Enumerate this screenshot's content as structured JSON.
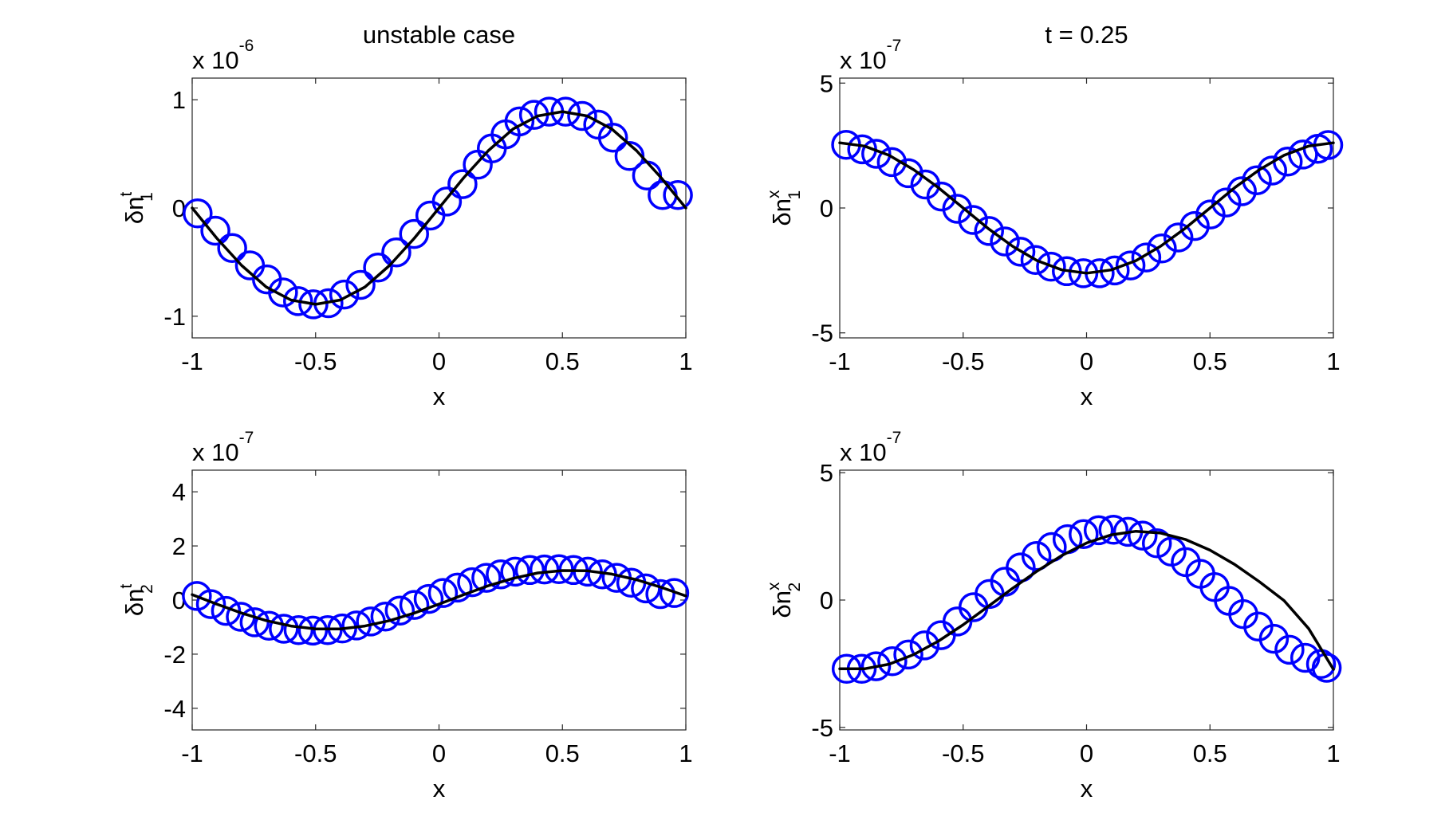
{
  "colors": {
    "marker": "#0000ff",
    "line": "#000000",
    "axis": "#262626",
    "background": "#ffffff"
  },
  "chart_data": [
    {
      "id": "top-left",
      "type": "line",
      "title": "unstable case",
      "xlabel": "x",
      "ylabel": {
        "base": "δn",
        "sup": "t",
        "sub": "1"
      },
      "exponent": {
        "base": "x 10",
        "power": "-6"
      },
      "xlim": [
        -1,
        1
      ],
      "ylim": [
        -1.2,
        1.2
      ],
      "xticks": [
        -1,
        -0.5,
        0,
        0.5,
        1
      ],
      "xtick_labels": [
        "-1",
        "-0.5",
        "0",
        "0.5",
        "1"
      ],
      "yticks": [
        -1,
        0,
        1
      ],
      "ytick_labels": [
        "-1",
        "0",
        "1"
      ],
      "grid": false,
      "series": [
        {
          "style": "circle-markers",
          "color": "#0000ff",
          "x": [
            -0.978,
            -0.906,
            -0.838,
            -0.766,
            -0.697,
            -0.632,
            -0.571,
            -0.509,
            -0.448,
            -0.384,
            -0.318,
            -0.247,
            -0.173,
            -0.101,
            -0.035,
            0.032,
            0.095,
            0.157,
            0.214,
            0.27,
            0.326,
            0.385,
            0.446,
            0.513,
            0.58,
            0.645,
            0.705,
            0.772,
            0.843,
            0.906,
            0.968
          ],
          "y": [
            -0.05,
            -0.21,
            -0.37,
            -0.53,
            -0.66,
            -0.78,
            -0.86,
            -0.89,
            -0.88,
            -0.8,
            -0.71,
            -0.55,
            -0.41,
            -0.24,
            -0.07,
            0.06,
            0.22,
            0.4,
            0.55,
            0.68,
            0.8,
            0.86,
            0.89,
            0.89,
            0.85,
            0.77,
            0.65,
            0.48,
            0.3,
            0.12,
            0.12
          ]
        },
        {
          "style": "solid-line",
          "color": "#000000",
          "x": [
            -1,
            -0.9,
            -0.8,
            -0.7,
            -0.6,
            -0.5,
            -0.4,
            -0.3,
            -0.2,
            -0.1,
            0,
            0.1,
            0.2,
            0.3,
            0.4,
            0.5,
            0.6,
            0.7,
            0.8,
            0.9,
            1
          ],
          "y": [
            0,
            -0.28,
            -0.53,
            -0.73,
            -0.85,
            -0.89,
            -0.85,
            -0.73,
            -0.53,
            -0.28,
            0,
            0.28,
            0.53,
            0.73,
            0.85,
            0.89,
            0.85,
            0.73,
            0.53,
            0.28,
            0
          ]
        }
      ]
    },
    {
      "id": "top-right",
      "type": "line",
      "title": "t = 0.25",
      "xlabel": "x",
      "ylabel": {
        "base": "δn",
        "sup": "x",
        "sub": "1"
      },
      "exponent": {
        "base": "x 10",
        "power": "-7"
      },
      "xlim": [
        -1,
        1
      ],
      "ylim": [
        -5.2,
        5.2
      ],
      "xticks": [
        -1,
        -0.5,
        0,
        0.5,
        1
      ],
      "xtick_labels": [
        "-1",
        "-0.5",
        "0",
        "0.5",
        "1"
      ],
      "yticks": [
        -5,
        0,
        5
      ],
      "ytick_labels": [
        "-5",
        "0",
        "5"
      ],
      "grid": false,
      "series": [
        {
          "style": "circle-markers",
          "color": "#0000ff",
          "x": [
            -0.974,
            -0.909,
            -0.852,
            -0.789,
            -0.722,
            -0.653,
            -0.588,
            -0.524,
            -0.46,
            -0.395,
            -0.331,
            -0.268,
            -0.207,
            -0.144,
            -0.08,
            -0.013,
            0.053,
            0.114,
            0.178,
            0.242,
            0.305,
            0.372,
            0.438,
            0.502,
            0.566,
            0.629,
            0.69,
            0.752,
            0.815,
            0.877,
            0.937,
            0.979
          ],
          "y": [
            2.53,
            2.35,
            2.17,
            1.84,
            1.39,
            0.94,
            0.46,
            -0.03,
            -0.48,
            -0.92,
            -1.34,
            -1.75,
            -2.08,
            -2.35,
            -2.53,
            -2.61,
            -2.61,
            -2.5,
            -2.3,
            -1.98,
            -1.62,
            -1.18,
            -0.72,
            -0.26,
            0.22,
            0.67,
            1.11,
            1.5,
            1.86,
            2.14,
            2.37,
            2.52
          ]
        },
        {
          "style": "solid-line",
          "color": "#000000",
          "x": [
            -1,
            -0.9,
            -0.8,
            -0.7,
            -0.6,
            -0.5,
            -0.4,
            -0.3,
            -0.2,
            -0.1,
            0,
            0.1,
            0.2,
            0.3,
            0.4,
            0.5,
            0.6,
            0.7,
            0.8,
            0.9,
            1
          ],
          "y": [
            2.61,
            2.48,
            2.11,
            1.53,
            0.81,
            0,
            -0.81,
            -1.53,
            -2.11,
            -2.48,
            -2.61,
            -2.48,
            -2.11,
            -1.53,
            -0.81,
            0,
            0.81,
            1.53,
            2.11,
            2.48,
            2.61
          ]
        }
      ]
    },
    {
      "id": "bottom-left",
      "type": "line",
      "title": "",
      "xlabel": "x",
      "ylabel": {
        "base": "δn",
        "sup": "t",
        "sub": "2"
      },
      "exponent": {
        "base": "x 10",
        "power": "-7"
      },
      "xlim": [
        -1,
        1
      ],
      "ylim": [
        -4.8,
        4.8
      ],
      "xticks": [
        -1,
        -0.5,
        0,
        0.5,
        1
      ],
      "xtick_labels": [
        "-1",
        "-0.5",
        "0",
        "0.5",
        "1"
      ],
      "yticks": [
        -4,
        -2,
        0,
        2,
        4
      ],
      "ytick_labels": [
        "-4",
        "-2",
        "0",
        "2",
        "4"
      ],
      "grid": false,
      "series": [
        {
          "style": "circle-markers",
          "color": "#0000ff",
          "x": [
            -0.981,
            -0.924,
            -0.863,
            -0.803,
            -0.747,
            -0.689,
            -0.629,
            -0.569,
            -0.511,
            -0.451,
            -0.392,
            -0.334,
            -0.276,
            -0.217,
            -0.159,
            -0.1,
            -0.042,
            0.016,
            0.075,
            0.134,
            0.192,
            0.25,
            0.309,
            0.368,
            0.427,
            0.486,
            0.545,
            0.603,
            0.661,
            0.72,
            0.779,
            0.838,
            0.897,
            0.953
          ],
          "y": [
            0.15,
            -0.15,
            -0.4,
            -0.62,
            -0.82,
            -0.95,
            -1.06,
            -1.11,
            -1.13,
            -1.11,
            -1.05,
            -0.94,
            -0.79,
            -0.61,
            -0.39,
            -0.18,
            0.04,
            0.26,
            0.46,
            0.66,
            0.82,
            0.95,
            1.05,
            1.11,
            1.13,
            1.14,
            1.11,
            1.05,
            0.95,
            0.82,
            0.64,
            0.43,
            0.22,
            0.26
          ]
        },
        {
          "style": "solid-line",
          "color": "#000000",
          "x": [
            -1,
            -0.9,
            -0.8,
            -0.7,
            -0.6,
            -0.5,
            -0.4,
            -0.3,
            -0.2,
            -0.1,
            0,
            0.1,
            0.2,
            0.3,
            0.4,
            0.5,
            0.6,
            0.7,
            0.8,
            0.9,
            1
          ],
          "y": [
            0.2,
            -0.15,
            -0.48,
            -0.76,
            -0.96,
            -1.07,
            -1.07,
            -0.96,
            -0.76,
            -0.48,
            -0.15,
            0.2,
            0.53,
            0.8,
            1.0,
            1.09,
            1.08,
            0.96,
            0.75,
            0.47,
            0.15
          ]
        }
      ]
    },
    {
      "id": "bottom-right",
      "type": "line",
      "title": "",
      "xlabel": "x",
      "ylabel": {
        "base": "δn",
        "sup": "x",
        "sub": "2"
      },
      "exponent": {
        "base": "x 10",
        "power": "-7"
      },
      "xlim": [
        -1,
        1
      ],
      "ylim": [
        -5.1,
        5.1
      ],
      "xticks": [
        -1,
        -0.5,
        0,
        0.5,
        1
      ],
      "xtick_labels": [
        "-1",
        "-0.5",
        "0",
        "0.5",
        "1"
      ],
      "yticks": [
        -5,
        0,
        5
      ],
      "ytick_labels": [
        "-5",
        "0",
        "5"
      ],
      "grid": false,
      "series": [
        {
          "style": "circle-markers",
          "color": "#0000ff",
          "x": [
            -0.972,
            -0.911,
            -0.853,
            -0.787,
            -0.722,
            -0.656,
            -0.59,
            -0.523,
            -0.458,
            -0.393,
            -0.33,
            -0.267,
            -0.203,
            -0.141,
            -0.077,
            -0.012,
            0.049,
            0.109,
            0.168,
            0.227,
            0.285,
            0.344,
            0.402,
            0.461,
            0.519,
            0.577,
            0.635,
            0.696,
            0.759,
            0.822,
            0.886,
            0.95,
            0.973
          ],
          "y": [
            -2.7,
            -2.7,
            -2.6,
            -2.4,
            -2.14,
            -1.78,
            -1.38,
            -0.84,
            -0.28,
            0.24,
            0.72,
            1.28,
            1.73,
            2.08,
            2.39,
            2.59,
            2.74,
            2.76,
            2.68,
            2.53,
            2.23,
            1.9,
            1.49,
            1.03,
            0.51,
            -0.03,
            -0.55,
            -1.04,
            -1.52,
            -1.95,
            -2.27,
            -2.51,
            -2.66
          ]
        },
        {
          "style": "solid-line",
          "color": "#000000",
          "x": [
            -1,
            -0.9,
            -0.8,
            -0.7,
            -0.6,
            -0.5,
            -0.4,
            -0.3,
            -0.2,
            -0.1,
            0,
            0.1,
            0.2,
            0.3,
            0.4,
            0.5,
            0.6,
            0.7,
            0.8,
            0.9,
            1
          ],
          "y": [
            -2.7,
            -2.7,
            -2.52,
            -2.14,
            -1.61,
            -0.97,
            -0.26,
            0.46,
            1.14,
            1.75,
            2.24,
            2.56,
            2.7,
            2.63,
            2.38,
            1.96,
            1.4,
            0.72,
            -0.02,
            -1.12,
            -2.72
          ]
        }
      ]
    }
  ]
}
